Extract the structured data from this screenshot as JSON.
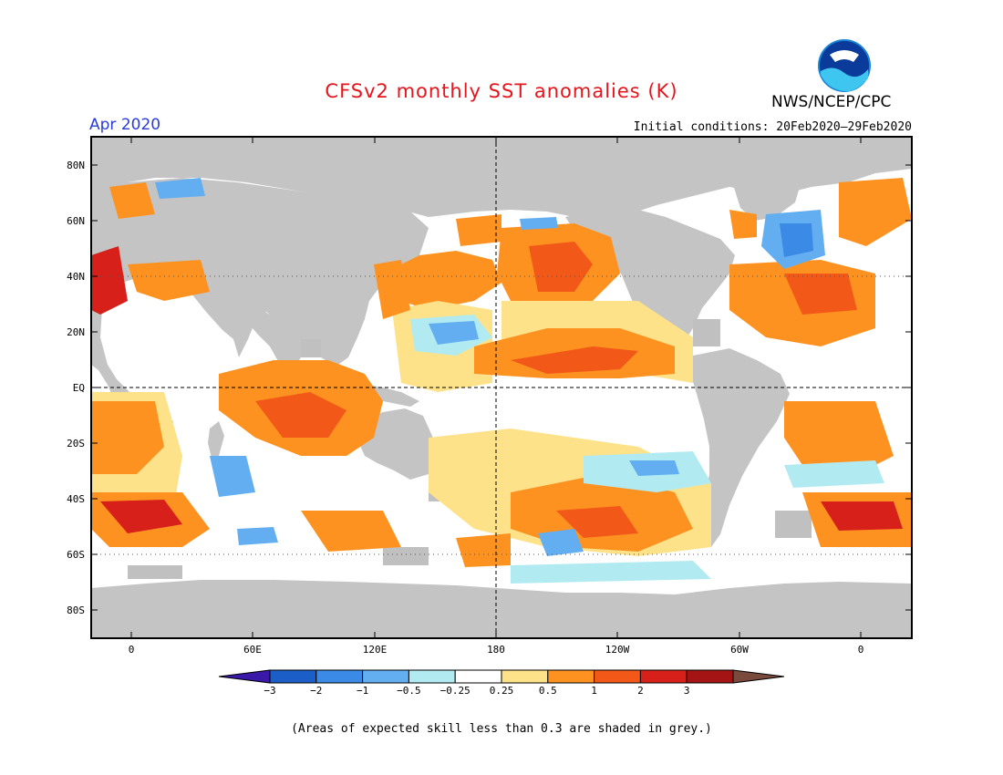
{
  "title": "CFSv2 monthly SST anomalies (K)",
  "forecast_month": "Apr 2020",
  "initial_conditions": "Initial conditions: 20Feb2020–29Feb2020",
  "agency": "NWS/NCEP/CPC",
  "logo_text": "NOAA",
  "footnote": "(Areas of expected skill less than 0.3 are shaded in grey.)",
  "map": {
    "lat_labels": [
      "80N",
      "60N",
      "40N",
      "20N",
      "EQ",
      "20S",
      "40S",
      "60S",
      "80S"
    ],
    "lon_labels": [
      "0",
      "60E",
      "120E",
      "180",
      "120W",
      "60W",
      "0"
    ],
    "colors": {
      "land": "#c4c4c4",
      "low_skill": "#c0c0c0",
      "ocean_neutral": "#ffffff",
      "frame": "#000000"
    }
  },
  "colorbar": {
    "labels": [
      "−3",
      "−2",
      "−1",
      "−0.5",
      "−0.25",
      "0.25",
      "0.5",
      "1",
      "2",
      "3"
    ],
    "colors": [
      "#3a18a8",
      "#1c5ec8",
      "#3a8ae6",
      "#62aef0",
      "#b2eaf2",
      "#ffffff",
      "#fde28a",
      "#fd9220",
      "#f25818",
      "#d8201a",
      "#a41414",
      "#7a4a3c"
    ]
  }
}
